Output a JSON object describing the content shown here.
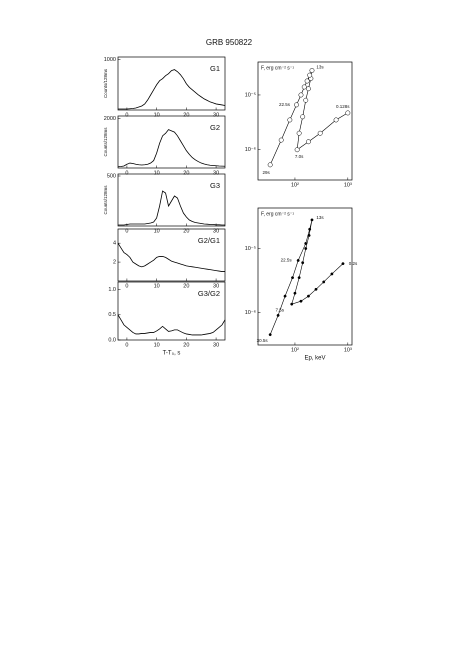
{
  "title": "GRB 950822",
  "chart_data": [
    {
      "type": "line",
      "label": "G1",
      "ylabel": "Counts/128ms",
      "color": "#000",
      "xlim": [
        -3,
        33
      ],
      "xticks": [
        0,
        10,
        20,
        30
      ],
      "ylim": [
        0,
        1050
      ],
      "yticks": [
        1000
      ],
      "x": [
        -3,
        -2,
        -1,
        0,
        1,
        2,
        3,
        4,
        5,
        6,
        7,
        8,
        9,
        10,
        11,
        12,
        13,
        14,
        15,
        16,
        17,
        18,
        19,
        20,
        21,
        22,
        23,
        24,
        25,
        26,
        27,
        28,
        29,
        30,
        31,
        32,
        33
      ],
      "values": [
        20,
        20,
        20,
        20,
        25,
        30,
        40,
        60,
        80,
        120,
        200,
        300,
        400,
        500,
        580,
        620,
        680,
        720,
        780,
        800,
        760,
        700,
        620,
        520,
        450,
        400,
        350,
        300,
        260,
        220,
        190,
        160,
        140,
        120,
        110,
        100,
        90
      ]
    },
    {
      "type": "line",
      "label": "G2",
      "ylabel": "Counts/128ms",
      "color": "#000",
      "xlim": [
        -3,
        33
      ],
      "xticks": [
        0,
        10,
        20,
        30
      ],
      "ylim": [
        0,
        2100
      ],
      "yticks": [
        2000
      ],
      "x": [
        -3,
        -2,
        -1,
        0,
        1,
        2,
        3,
        4,
        5,
        6,
        7,
        8,
        9,
        10,
        11,
        12,
        13,
        14,
        15,
        16,
        17,
        18,
        19,
        20,
        21,
        22,
        23,
        24,
        25,
        26,
        27,
        28,
        29,
        30,
        31,
        32,
        33
      ],
      "values": [
        50,
        60,
        80,
        150,
        200,
        180,
        150,
        130,
        120,
        130,
        150,
        200,
        300,
        600,
        1000,
        1300,
        1400,
        1550,
        1500,
        1450,
        1300,
        1100,
        900,
        700,
        550,
        420,
        330,
        260,
        200,
        160,
        130,
        110,
        100,
        90,
        80,
        75,
        70
      ]
    },
    {
      "type": "line",
      "label": "G3",
      "ylabel": "Counts/128ms",
      "color": "#000",
      "xlim": [
        -3,
        33
      ],
      "xticks": [
        0,
        10,
        20,
        30
      ],
      "ylim": [
        0,
        520
      ],
      "yticks": [
        500
      ],
      "x": [
        -3,
        -2,
        -1,
        0,
        1,
        2,
        3,
        4,
        5,
        6,
        7,
        8,
        9,
        10,
        11,
        12,
        13,
        14,
        15,
        16,
        17,
        18,
        19,
        20,
        21,
        22,
        23,
        24,
        25,
        26,
        27,
        28,
        29,
        30,
        31,
        32,
        33
      ],
      "values": [
        10,
        10,
        10,
        15,
        20,
        20,
        20,
        20,
        20,
        20,
        25,
        30,
        40,
        80,
        200,
        350,
        330,
        200,
        250,
        300,
        280,
        200,
        130,
        90,
        60,
        45,
        35,
        30,
        25,
        20,
        18,
        15,
        15,
        12,
        12,
        10,
        10
      ]
    },
    {
      "type": "line",
      "label": "G2/G1",
      "color": "#000",
      "xlim": [
        -3,
        33
      ],
      "xticks": [
        0,
        10,
        20,
        30
      ],
      "ylim": [
        0,
        5.5
      ],
      "yticks": [
        2,
        4
      ],
      "x": [
        -3,
        -2,
        -1,
        0,
        1,
        2,
        3,
        4,
        5,
        6,
        7,
        8,
        9,
        10,
        11,
        12,
        13,
        14,
        15,
        16,
        17,
        18,
        19,
        20,
        21,
        22,
        23,
        24,
        25,
        26,
        27,
        28,
        29,
        30,
        31,
        32,
        33
      ],
      "values": [
        4,
        3.5,
        3,
        2.8,
        2.5,
        2,
        1.8,
        1.6,
        1.5,
        1.6,
        1.8,
        2,
        2.2,
        2.5,
        2.6,
        2.6,
        2.5,
        2.3,
        2.1,
        2,
        1.9,
        1.8,
        1.7,
        1.6,
        1.55,
        1.5,
        1.45,
        1.4,
        1.35,
        1.3,
        1.25,
        1.2,
        1.15,
        1.1,
        1.05,
        1.0,
        1.0
      ]
    },
    {
      "type": "line",
      "label": "G3/G2",
      "xlabel": "T-T₀, s",
      "color": "#000",
      "xlim": [
        -3,
        33
      ],
      "xticks": [
        0,
        10,
        20,
        30
      ],
      "ylim": [
        0,
        1.15
      ],
      "yticks": [
        {
          "value": 0,
          "label": "0.0"
        },
        {
          "value": 0.5,
          "label": "0.5"
        },
        {
          "value": 1,
          "label": "1.0"
        }
      ],
      "x": [
        -3,
        -2,
        -1,
        0,
        1,
        2,
        3,
        4,
        5,
        6,
        7,
        8,
        9,
        10,
        11,
        12,
        13,
        14,
        15,
        16,
        17,
        18,
        19,
        20,
        21,
        22,
        23,
        24,
        25,
        26,
        27,
        28,
        29,
        30,
        31,
        32,
        33
      ],
      "values": [
        0.5,
        0.4,
        0.3,
        0.25,
        0.2,
        0.15,
        0.12,
        0.12,
        0.13,
        0.13,
        0.14,
        0.15,
        0.15,
        0.18,
        0.22,
        0.27,
        0.22,
        0.17,
        0.18,
        0.2,
        0.2,
        0.17,
        0.14,
        0.12,
        0.11,
        0.1,
        0.1,
        0.1,
        0.1,
        0.11,
        0.12,
        0.13,
        0.15,
        0.2,
        0.25,
        0.3,
        0.4
      ]
    },
    {
      "type": "scatter",
      "marker": "open",
      "ylabel": "F, erg cm⁻² s⁻¹",
      "color": "#000",
      "xscale": "log",
      "yscale": "log",
      "xlim": [
        20,
        1200
      ],
      "xticks": [
        {
          "value": 100,
          "label": "10²"
        },
        {
          "value": 1000,
          "label": "10³"
        }
      ],
      "ylim": [
        2.8e-07,
        4e-05
      ],
      "yticks": [
        {
          "value": 1e-06,
          "label": "10⁻⁶"
        },
        {
          "value": 1e-05,
          "label": "10⁻⁵"
        }
      ],
      "annotations": [
        "0.128s",
        "7.0s",
        "13s",
        "22.5s",
        "29s"
      ],
      "x": [
        1000,
        600,
        300,
        180,
        110,
        120,
        140,
        160,
        180,
        200,
        210,
        190,
        170,
        150,
        130,
        107,
        80,
        55,
        34
      ],
      "values": [
        4.7e-06,
        3.5e-06,
        2e-06,
        1.4e-06,
        1e-06,
        2e-06,
        4e-06,
        8e-06,
        1.3e-05,
        2e-05,
        2.8e-05,
        2.3e-05,
        1.8e-05,
        1.4e-05,
        1e-05,
        6.6e-06,
        3.5e-06,
        1.5e-06,
        5.3e-07
      ]
    },
    {
      "type": "scatter",
      "marker": "filled",
      "ylabel": "F, erg cm⁻² s⁻¹",
      "xlabel": "Ep, keV",
      "color": "#000",
      "xscale": "log",
      "yscale": "log",
      "xlim": [
        20,
        1200
      ],
      "xticks": [
        {
          "value": 100,
          "label": "10²"
        },
        {
          "value": 1000,
          "label": "10³"
        }
      ],
      "ylim": [
        3.1e-07,
        4.3e-05
      ],
      "yticks": [
        {
          "value": 1e-06,
          "label": "10⁻⁶"
        },
        {
          "value": 1e-05,
          "label": "10⁻⁵"
        }
      ],
      "annotations": [
        "0.2s",
        "7.5s",
        "13s",
        "22.5s",
        "30.5s"
      ],
      "x": [
        810,
        500,
        350,
        250,
        180,
        130,
        87,
        100,
        120,
        140,
        160,
        185,
        210,
        190,
        160,
        115,
        90,
        65,
        48,
        34
      ],
      "values": [
        5.8e-06,
        4e-06,
        3e-06,
        2.3e-06,
        1.8e-06,
        1.5e-06,
        1.35e-06,
        2e-06,
        3.5e-06,
        6e-06,
        1e-05,
        1.6e-05,
        2.8e-05,
        2e-05,
        1.2e-05,
        6.5e-06,
        3.5e-06,
        1.8e-06,
        9e-07,
        4.5e-07
      ]
    }
  ]
}
